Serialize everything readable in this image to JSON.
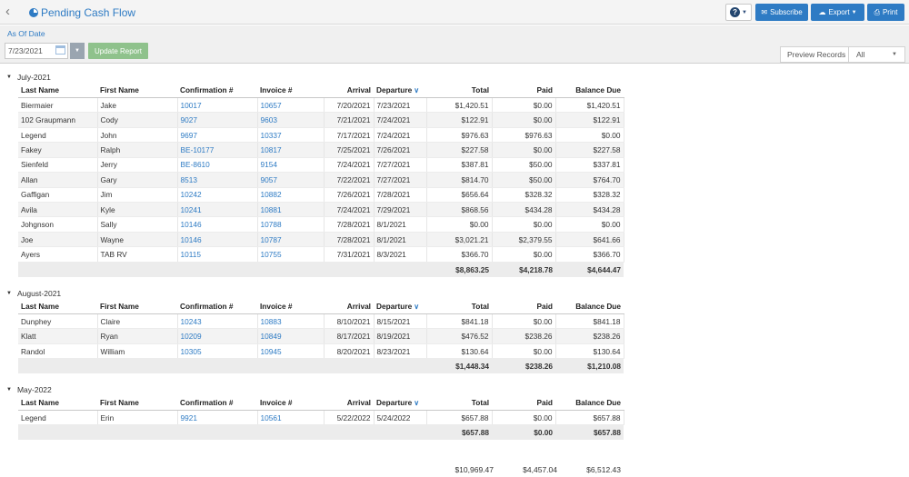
{
  "header": {
    "title": "Pending Cash Flow",
    "subscribe_label": "Subscribe",
    "export_label": "Export",
    "print_label": "Print"
  },
  "filters": {
    "as_of_label": "As Of Date",
    "as_of_value": "7/23/2021",
    "update_label": "Update Report",
    "preview_label": "Preview Records",
    "preview_value": "All"
  },
  "columns": [
    "Last Name",
    "First Name",
    "Confirmation #",
    "Invoice #",
    "Arrival",
    "Departure",
    "Total",
    "Paid",
    "Balance Due"
  ],
  "groups": [
    {
      "title": "July-2021",
      "rows": [
        [
          "Biermaier",
          "Jake",
          "10017",
          "10657",
          "7/20/2021",
          "7/23/2021",
          "$1,420.51",
          "$0.00",
          "$1,420.51"
        ],
        [
          "102 Graupmann",
          "Cody",
          "9027",
          "9603",
          "7/21/2021",
          "7/24/2021",
          "$122.91",
          "$0.00",
          "$122.91"
        ],
        [
          "Legend",
          "John",
          "9697",
          "10337",
          "7/17/2021",
          "7/24/2021",
          "$976.63",
          "$976.63",
          "$0.00"
        ],
        [
          "Fakey",
          "Ralph",
          "BE-10177",
          "10817",
          "7/25/2021",
          "7/26/2021",
          "$227.58",
          "$0.00",
          "$227.58"
        ],
        [
          "Sienfeld",
          "Jerry",
          "BE-8610",
          "9154",
          "7/24/2021",
          "7/27/2021",
          "$387.81",
          "$50.00",
          "$337.81"
        ],
        [
          "Allan",
          "Gary",
          "8513",
          "9057",
          "7/22/2021",
          "7/27/2021",
          "$814.70",
          "$50.00",
          "$764.70"
        ],
        [
          "Gaffigan",
          "Jim",
          "10242",
          "10882",
          "7/26/2021",
          "7/28/2021",
          "$656.64",
          "$328.32",
          "$328.32"
        ],
        [
          "Avila",
          "Kyle",
          "10241",
          "10881",
          "7/24/2021",
          "7/29/2021",
          "$868.56",
          "$434.28",
          "$434.28"
        ],
        [
          "Johgnson",
          "Sally",
          "10146",
          "10788",
          "7/28/2021",
          "8/1/2021",
          "$0.00",
          "$0.00",
          "$0.00"
        ],
        [
          "Joe",
          "Wayne",
          "10146",
          "10787",
          "7/28/2021",
          "8/1/2021",
          "$3,021.21",
          "$2,379.55",
          "$641.66"
        ],
        [
          "Ayers",
          "TAB RV",
          "10115",
          "10755",
          "7/31/2021",
          "8/3/2021",
          "$366.70",
          "$0.00",
          "$366.70"
        ]
      ],
      "totals": [
        "$8,863.25",
        "$4,218.78",
        "$4,644.47"
      ]
    },
    {
      "title": "August-2021",
      "rows": [
        [
          "Dunphey",
          "Claire",
          "10243",
          "10883",
          "8/10/2021",
          "8/15/2021",
          "$841.18",
          "$0.00",
          "$841.18"
        ],
        [
          "Klatt",
          "Ryan",
          "10209",
          "10849",
          "8/17/2021",
          "8/19/2021",
          "$476.52",
          "$238.26",
          "$238.26"
        ],
        [
          "Randol",
          "William",
          "10305",
          "10945",
          "8/20/2021",
          "8/23/2021",
          "$130.64",
          "$0.00",
          "$130.64"
        ]
      ],
      "totals": [
        "$1,448.34",
        "$238.26",
        "$1,210.08"
      ]
    },
    {
      "title": "May-2022",
      "rows": [
        [
          "Legend",
          "Erin",
          "9921",
          "10561",
          "5/22/2022",
          "5/24/2022",
          "$657.88",
          "$0.00",
          "$657.88"
        ]
      ],
      "totals": [
        "$657.88",
        "$0.00",
        "$657.88"
      ]
    }
  ],
  "grand_totals": [
    "$10,969.47",
    "$4,457.04",
    "$6,512.43"
  ]
}
